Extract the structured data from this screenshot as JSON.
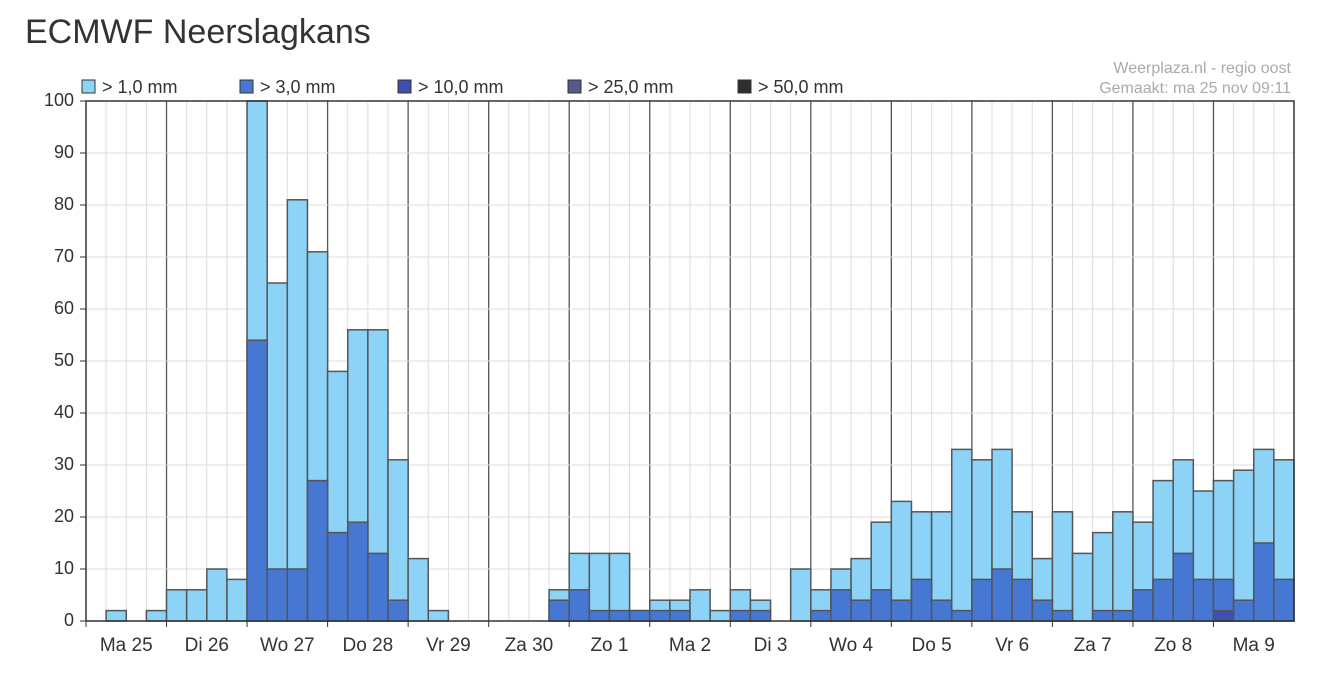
{
  "chart_data": {
    "type": "bar",
    "title": "ECMWF Neerslagkans",
    "source": "Weerplaza.nl - regio oost",
    "created": "Gemaakt: ma 25 nov 09:11",
    "categories": [
      null,
      null,
      "Ma 25",
      null,
      null,
      null,
      "Di 26",
      null,
      null,
      null,
      "Wo 27",
      null,
      null,
      null,
      "Do 28",
      null,
      null,
      null,
      "Vr 29",
      null,
      null,
      null,
      "Za 30",
      null,
      null,
      null,
      "Zo 1",
      null,
      null,
      null,
      "Ma 2",
      null,
      null,
      null,
      "Di 3",
      null,
      null,
      null,
      "Wo 4",
      null,
      null,
      null,
      "Do 5",
      null,
      null,
      null,
      "Vr 6",
      null,
      null,
      null,
      "Za 7",
      null,
      null,
      null,
      "Zo 8",
      null,
      null,
      null,
      "Ma 9",
      null
    ],
    "series": [
      {
        "name": "> 1,0 mm",
        "color": "#8dd3f8",
        "values": [
          0,
          2,
          0,
          2,
          6,
          6,
          10,
          8,
          100,
          65,
          81,
          71,
          48,
          56,
          56,
          31,
          12,
          2,
          0,
          0,
          0,
          0,
          0,
          6,
          13,
          13,
          13,
          2,
          4,
          4,
          6,
          2,
          6,
          4,
          0,
          10,
          6,
          10,
          12,
          19,
          23,
          21,
          21,
          33,
          31,
          33,
          21,
          12,
          21,
          13,
          17,
          21,
          19,
          27,
          31,
          25,
          27,
          29,
          33,
          31
        ]
      },
      {
        "name": "> 3,0 mm",
        "color": "#4577d3",
        "values": [
          0,
          0,
          0,
          0,
          0,
          0,
          0,
          0,
          54,
          10,
          10,
          27,
          17,
          19,
          13,
          4,
          0,
          0,
          0,
          0,
          0,
          0,
          0,
          4,
          6,
          2,
          2,
          2,
          2,
          2,
          0,
          0,
          2,
          2,
          0,
          0,
          2,
          6,
          4,
          6,
          4,
          8,
          4,
          2,
          8,
          10,
          8,
          4,
          2,
          0,
          2,
          2,
          6,
          8,
          13,
          8,
          8,
          4,
          15,
          8
        ]
      },
      {
        "name": "> 10,0 mm",
        "color": "#3f4fb0",
        "values": [
          0,
          0,
          0,
          0,
          0,
          0,
          0,
          0,
          0,
          0,
          0,
          0,
          0,
          0,
          0,
          0,
          0,
          0,
          0,
          0,
          0,
          0,
          0,
          0,
          0,
          0,
          0,
          0,
          0,
          0,
          0,
          0,
          0,
          0,
          0,
          0,
          0,
          0,
          0,
          0,
          0,
          0,
          0,
          0,
          0,
          0,
          0,
          0,
          0,
          0,
          0,
          0,
          0,
          0,
          0,
          0,
          2,
          0,
          0,
          0
        ]
      },
      {
        "name": "> 25,0 mm",
        "color": "#555a88",
        "values": [
          0,
          0,
          0,
          0,
          0,
          0,
          0,
          0,
          0,
          0,
          0,
          0,
          0,
          0,
          0,
          0,
          0,
          0,
          0,
          0,
          0,
          0,
          0,
          0,
          0,
          0,
          0,
          0,
          0,
          0,
          0,
          0,
          0,
          0,
          0,
          0,
          0,
          0,
          0,
          0,
          0,
          0,
          0,
          0,
          0,
          0,
          0,
          0,
          0,
          0,
          0,
          0,
          0,
          0,
          0,
          0,
          0,
          0,
          0,
          0
        ]
      },
      {
        "name": "> 50,0 mm",
        "color": "#2e2e2e",
        "values": [
          0,
          0,
          0,
          0,
          0,
          0,
          0,
          0,
          0,
          0,
          0,
          0,
          0,
          0,
          0,
          0,
          0,
          0,
          0,
          0,
          0,
          0,
          0,
          0,
          0,
          0,
          0,
          0,
          0,
          0,
          0,
          0,
          0,
          0,
          0,
          0,
          0,
          0,
          0,
          0,
          0,
          0,
          0,
          0,
          0,
          0,
          0,
          0,
          0,
          0,
          0,
          0,
          0,
          0,
          0,
          0,
          0,
          0,
          0,
          0
        ]
      }
    ],
    "ylim": [
      0,
      100
    ],
    "yticks": [
      0,
      10,
      20,
      30,
      40,
      50,
      60,
      70,
      80,
      90,
      100
    ],
    "grid": true
  }
}
